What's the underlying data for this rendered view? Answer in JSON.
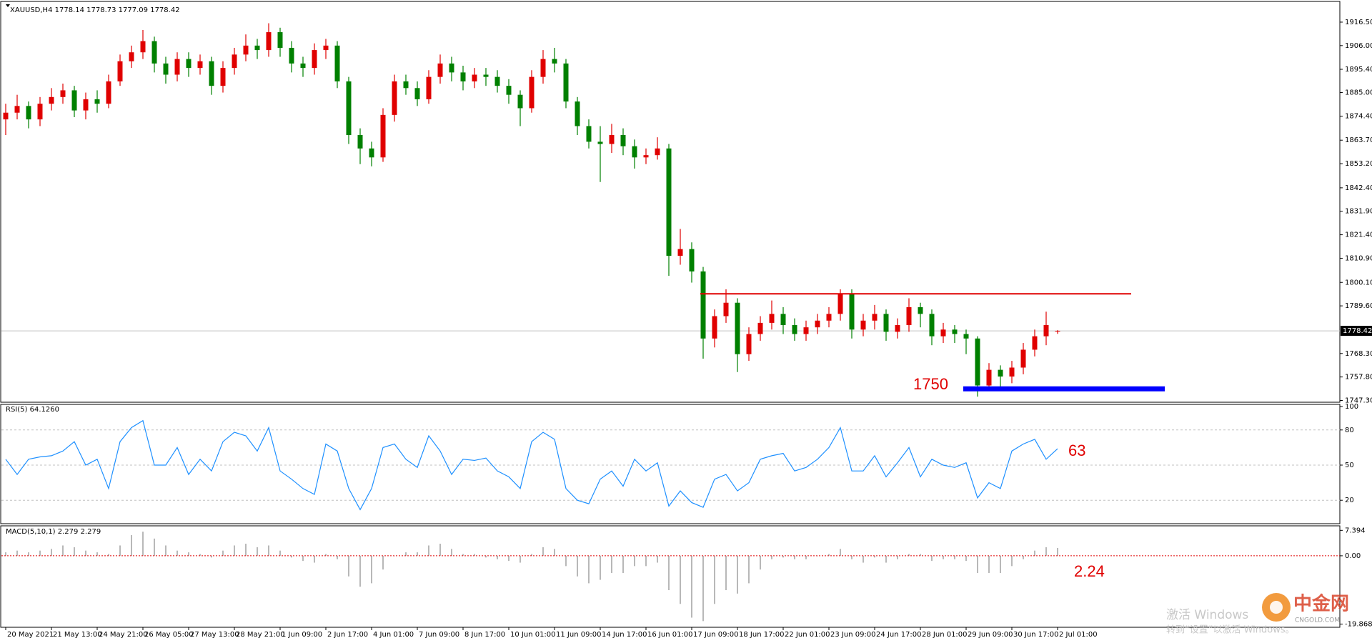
{
  "chart_data": [
    {
      "type": "candlestick",
      "title": "XAUUSD,H4  1778.14 1778.73 1777.09 1778.42",
      "categories": [
        "20 May 2021",
        null,
        null,
        null,
        "21 May 13:00",
        null,
        null,
        null,
        "24 May 21:00",
        null,
        null,
        null,
        "26 May 05:00",
        null,
        null,
        null,
        "27 May 13:00",
        null,
        null,
        null,
        "28 May 21:00",
        null,
        null,
        null,
        "1 Jun 09:00",
        null,
        null,
        null,
        "2 Jun 17:00",
        null,
        null,
        null,
        "4 Jun 01:00",
        null,
        null,
        null,
        "7 Jun 09:00",
        null,
        null,
        null,
        "8 Jun 17:00",
        null,
        null,
        null,
        "10 Jun 01:00",
        null,
        null,
        null,
        "11 Jun 09:00",
        null,
        null,
        null,
        "14 Jun 17:00",
        null,
        null,
        null,
        "16 Jun 01:00",
        null,
        null,
        null,
        "17 Jun 09:00",
        null,
        null,
        null,
        "18 Jun 17:00",
        null,
        null,
        null,
        "22 Jun 01:00",
        null,
        null,
        null,
        "23 Jun 09:00",
        null,
        null,
        null,
        "24 Jun 17:00",
        null,
        null,
        null,
        "28 Jun 01:00",
        null,
        null,
        null,
        "29 Jun 09:00",
        null,
        null,
        null,
        "30 Jun 17:00",
        null,
        null,
        null,
        "2 Jul 01:00"
      ],
      "open": [
        1873,
        1876,
        1879,
        1873,
        1880,
        1883,
        1886,
        1877,
        1882,
        1880,
        1890,
        1899,
        1903,
        1908,
        1898,
        1893,
        1900,
        1896,
        1899,
        1888,
        1896,
        1902,
        1906,
        1904,
        1912,
        1905,
        1898,
        1896,
        1904,
        1906,
        1890,
        1866,
        1860,
        1856,
        1875,
        1890,
        1887,
        1882,
        1892,
        1898,
        1894,
        1890,
        1893,
        1892,
        1888,
        1884,
        1878,
        1892,
        1900,
        1898,
        1881,
        1870,
        1863,
        1862,
        1866,
        1861,
        1856,
        1857,
        1860,
        1812,
        1815,
        1805,
        1775,
        1785,
        1791,
        1768,
        1777,
        1782,
        1786,
        1781,
        1777,
        1780,
        1783,
        1786,
        1795,
        1779,
        1783,
        1786,
        1778,
        1781,
        1789,
        1786,
        1776,
        1779,
        1777,
        1775,
        1754,
        1761,
        1758,
        1762,
        1770,
        1776,
        1778.14
      ],
      "high": [
        1880,
        1884,
        1881,
        1883,
        1887,
        1889,
        1888,
        1885,
        1886,
        1893,
        1902,
        1906,
        1913,
        1910,
        1901,
        1903,
        1903,
        1902,
        1901,
        1899,
        1905,
        1911,
        1909,
        1916,
        1914,
        1908,
        1901,
        1907,
        1909,
        1908,
        1892,
        1869,
        1863,
        1878,
        1893,
        1893,
        1890,
        1895,
        1902,
        1901,
        1897,
        1896,
        1896,
        1895,
        1891,
        1886,
        1895,
        1904,
        1905,
        1900,
        1883,
        1873,
        1870,
        1871,
        1869,
        1864,
        1860,
        1865,
        1862,
        1824,
        1818,
        1807,
        1788,
        1797,
        1793,
        1780,
        1785,
        1792,
        1789,
        1784,
        1783,
        1786,
        1789,
        1797,
        1797,
        1786,
        1790,
        1788,
        1784,
        1793,
        1791,
        1788,
        1782,
        1781,
        1779,
        1776,
        1764,
        1763,
        1765,
        1773,
        1779,
        1787,
        1778.73
      ],
      "low": [
        1866,
        1873,
        1869,
        1870,
        1877,
        1880,
        1874,
        1873,
        1876,
        1878,
        1888,
        1896,
        1900,
        1894,
        1889,
        1890,
        1892,
        1893,
        1884,
        1885,
        1893,
        1899,
        1900,
        1901,
        1901,
        1894,
        1892,
        1893,
        1900,
        1887,
        1862,
        1853,
        1852,
        1854,
        1872,
        1884,
        1879,
        1880,
        1889,
        1890,
        1886,
        1887,
        1888,
        1885,
        1880,
        1870,
        1876,
        1889,
        1894,
        1878,
        1866,
        1860,
        1845,
        1858,
        1857,
        1851,
        1853,
        1855,
        1803,
        1808,
        1800,
        1766,
        1771,
        1782,
        1760,
        1765,
        1774,
        1779,
        1777,
        1774,
        1774,
        1777,
        1780,
        1783,
        1775,
        1776,
        1779,
        1774,
        1775,
        1778,
        1780,
        1772,
        1773,
        1773,
        1768,
        1749,
        1752,
        1752,
        1755,
        1759,
        1767,
        1772,
        1777.09
      ],
      "close": [
        1876,
        1879,
        1873,
        1880,
        1883,
        1886,
        1877,
        1882,
        1880,
        1890,
        1899,
        1903,
        1908,
        1898,
        1893,
        1900,
        1896,
        1899,
        1888,
        1896,
        1902,
        1906,
        1904,
        1912,
        1905,
        1898,
        1896,
        1904,
        1906,
        1890,
        1866,
        1860,
        1856,
        1875,
        1890,
        1887,
        1882,
        1892,
        1898,
        1894,
        1890,
        1893,
        1892,
        1888,
        1884,
        1878,
        1892,
        1900,
        1898,
        1881,
        1870,
        1863,
        1862,
        1866,
        1861,
        1856,
        1857,
        1860,
        1812,
        1815,
        1805,
        1775,
        1785,
        1791,
        1768,
        1777,
        1782,
        1786,
        1781,
        1777,
        1780,
        1783,
        1786,
        1795,
        1779,
        1783,
        1786,
        1778,
        1781,
        1789,
        1786,
        1776,
        1779,
        1777,
        1775,
        1754,
        1761,
        1758,
        1762,
        1770,
        1776,
        1781,
        1778.42
      ],
      "up_color": "#e00000",
      "down_color": "#008000",
      "price_line_color": "#c0c0c0",
      "ylim": [
        1746.5,
        1923.2
      ],
      "yticks": [
        {
          "value": 1916.5,
          "label": "1916.50"
        },
        {
          "value": 1906,
          "label": "1906.00"
        },
        {
          "value": 1895.4,
          "label": "1895.40"
        },
        {
          "value": 1885,
          "label": "1885.00"
        },
        {
          "value": 1874.4,
          "label": "1874.40"
        },
        {
          "value": 1863.7,
          "label": "1863.70"
        },
        {
          "value": 1853.2,
          "label": "1853.20"
        },
        {
          "value": 1842.4,
          "label": "1842.40"
        },
        {
          "value": 1831.9,
          "label": "1831.90"
        },
        {
          "value": 1821.4,
          "label": "1821.40"
        },
        {
          "value": 1810.9,
          "label": "1810.90"
        },
        {
          "value": 1800.1,
          "label": "1800.10"
        },
        {
          "value": 1789.6,
          "label": "1789.60"
        },
        {
          "value": 1768.3,
          "label": "1768.30"
        },
        {
          "value": 1757.8,
          "label": "1757.80"
        },
        {
          "value": 1747.3,
          "label": "1747.30"
        }
      ],
      "hlines": [
        {
          "value": 1795,
          "color": "#e00000"
        },
        {
          "value": 1752.5,
          "color": "#0000ff"
        }
      ],
      "annotation": "1750"
    },
    {
      "type": "line",
      "title": "RSI(5) 64.1260",
      "color": "#1e90ff",
      "values": [
        55,
        42,
        55,
        57,
        58,
        62,
        70,
        50,
        55,
        30,
        70,
        82,
        88,
        50,
        50,
        65,
        42,
        55,
        45,
        70,
        78,
        75,
        62,
        82,
        45,
        38,
        30,
        25,
        68,
        62,
        30,
        12,
        30,
        65,
        68,
        55,
        48,
        75,
        62,
        42,
        55,
        54,
        56,
        45,
        40,
        30,
        70,
        78,
        72,
        30,
        20,
        17,
        38,
        45,
        32,
        55,
        45,
        52,
        15,
        28,
        18,
        14,
        38,
        42,
        28,
        35,
        55,
        58,
        60,
        45,
        48,
        55,
        65,
        82,
        45,
        45,
        58,
        40,
        52,
        65,
        40,
        55,
        50,
        48,
        52,
        22,
        35,
        30,
        62,
        68,
        72,
        55,
        64
      ],
      "ylim": [
        0,
        100
      ],
      "yticks": [
        20,
        50,
        80,
        100
      ],
      "annotation": "63"
    },
    {
      "type": "bar",
      "title": "MACD(5,10,1) 2.279 2.279",
      "color": "#b8b8b8",
      "zero_color": "#e00000",
      "values": [
        1,
        1.5,
        1,
        1.5,
        2,
        3,
        2.5,
        1.5,
        1,
        0.5,
        3,
        6,
        7,
        5,
        3,
        1.5,
        1,
        0.5,
        -0.5,
        1.5,
        3,
        3.5,
        2.5,
        3,
        1.5,
        -0.5,
        -1.5,
        -2,
        0.5,
        -1,
        -6,
        -9,
        -8,
        -4,
        0,
        1,
        1,
        3,
        3.5,
        2,
        0.5,
        0.5,
        -0.5,
        -1,
        -1.5,
        -2,
        0.5,
        2.5,
        2,
        -3,
        -6,
        -8,
        -7,
        -5,
        -5,
        -3,
        -3,
        -2,
        -10,
        -14,
        -18,
        -19,
        -14,
        -10,
        -11,
        -8,
        -4,
        -1,
        -0.5,
        -1,
        -1,
        0,
        0.5,
        2,
        -1,
        -2,
        -0.5,
        -2,
        -1,
        0.5,
        0.5,
        -1.5,
        -1,
        -1,
        -1.5,
        -5,
        -5,
        -5,
        -3,
        -1,
        1.5,
        2.5,
        2.279
      ],
      "ylim": [
        -20.8,
        8.5
      ],
      "yticks": [
        7.394,
        {
          "value": 0,
          "label": "0.00"
        },
        -19.868
      ],
      "annotation": "2.24"
    }
  ],
  "watermark": {
    "line1": "激活 Windows",
    "line2": "转到“设置”以激活 Windows。",
    "logo": "中金网",
    "logo_sub": "CNGOLD.COM"
  }
}
